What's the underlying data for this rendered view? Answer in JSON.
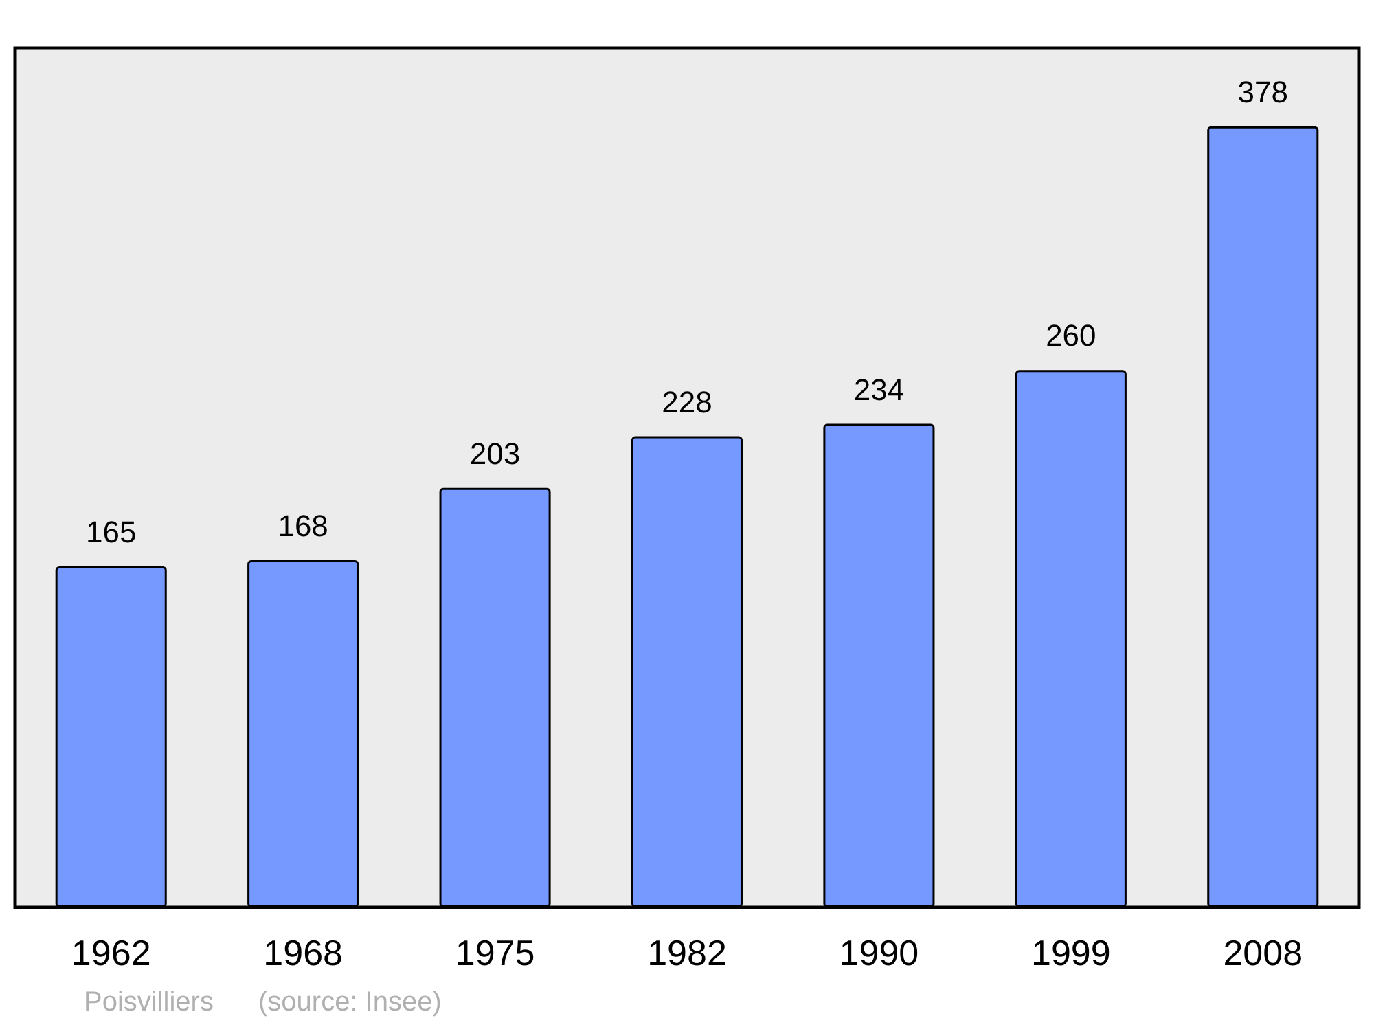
{
  "chart_data": {
    "type": "bar",
    "categories": [
      "1962",
      "1968",
      "1975",
      "1982",
      "1990",
      "1999",
      "2008"
    ],
    "values": [
      165,
      168,
      203,
      228,
      234,
      260,
      378
    ],
    "color": "#7599ff",
    "data_labels": true,
    "annotations": [
      "Poisvilliers",
      "(source: Insee)"
    ]
  }
}
